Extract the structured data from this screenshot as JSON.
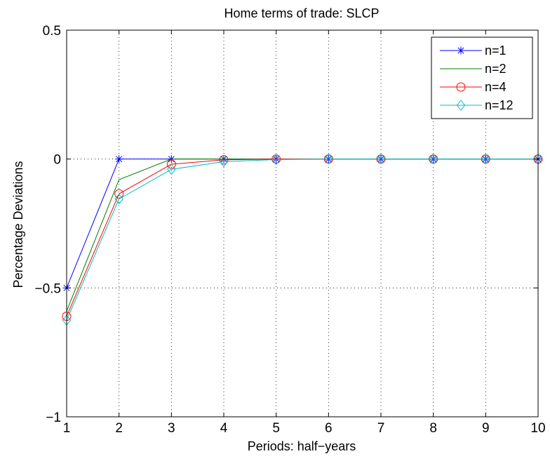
{
  "chart_data": {
    "type": "line",
    "title": "Home terms of trade: SLCP",
    "xlabel": "Periods: half−years",
    "ylabel": "Percentage Deviations",
    "x": [
      1,
      2,
      3,
      4,
      5,
      6,
      7,
      8,
      9,
      10
    ],
    "xlim": [
      1,
      10
    ],
    "ylim": [
      -1,
      0.5
    ],
    "x_ticks": [
      1,
      2,
      3,
      4,
      5,
      6,
      7,
      8,
      9,
      10
    ],
    "y_ticks": [
      -1,
      -0.5,
      0,
      0.5
    ],
    "x_tick_labels": [
      "1",
      "2",
      "3",
      "4",
      "5",
      "6",
      "7",
      "8",
      "9",
      "10"
    ],
    "y_tick_labels": [
      "−1",
      "−0.5",
      "0",
      "0.5"
    ],
    "grid": true,
    "legend_position": "top-right",
    "series": [
      {
        "name": "n=1",
        "color": "#0000ff",
        "marker": "asterisk",
        "values": [
          -0.5,
          0,
          0,
          0,
          0,
          0,
          0,
          0,
          0,
          0
        ]
      },
      {
        "name": "n=2",
        "color": "#008000",
        "marker": "none",
        "values": [
          -0.59,
          -0.08,
          0,
          0,
          0,
          0,
          0,
          0,
          0,
          0
        ]
      },
      {
        "name": "n=4",
        "color": "#ff0000",
        "marker": "circle",
        "values": [
          -0.61,
          -0.135,
          -0.02,
          -0.003,
          0,
          0,
          0,
          0,
          0,
          0
        ]
      },
      {
        "name": "n=12",
        "color": "#00bfbf",
        "marker": "diamond",
        "values": [
          -0.625,
          -0.155,
          -0.04,
          -0.01,
          -0.002,
          0,
          0,
          0,
          0,
          0
        ]
      }
    ]
  }
}
